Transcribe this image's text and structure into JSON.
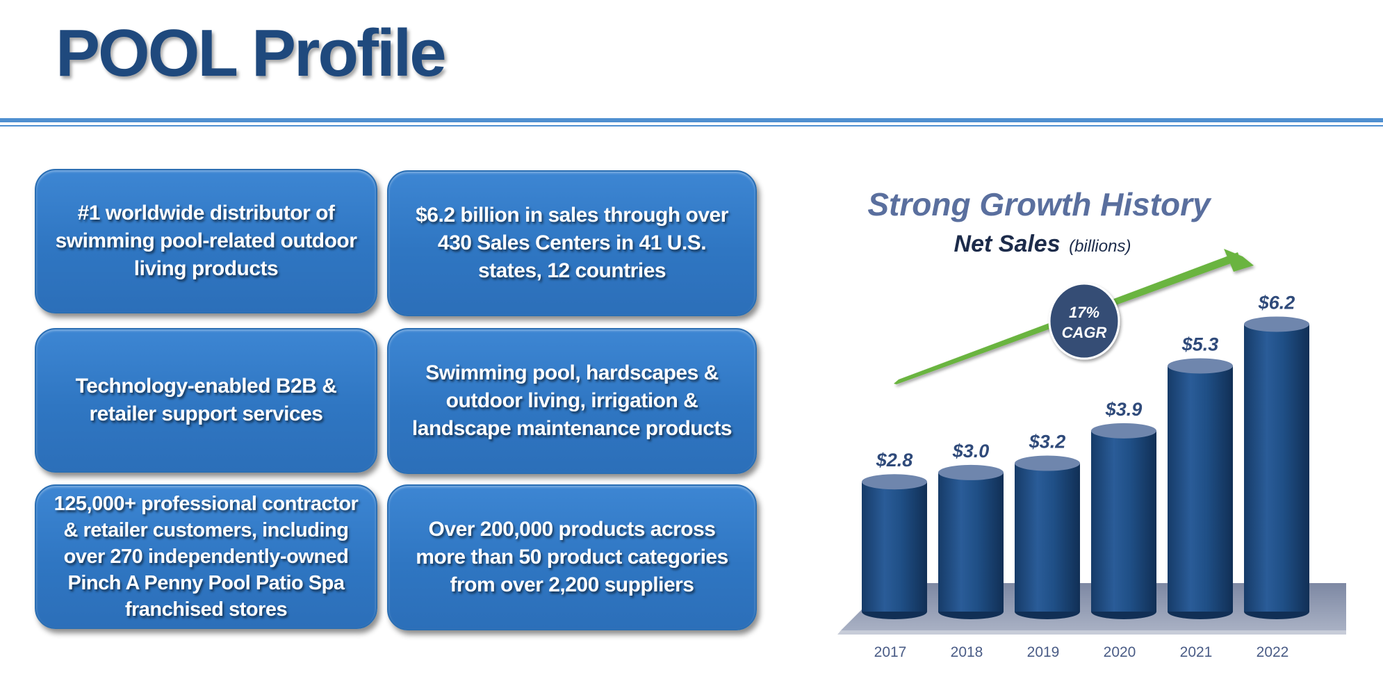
{
  "title": "POOL Profile",
  "tiles": [
    "#1 worldwide distributor of swimming pool-related outdoor living products",
    "$6.2 billion in sales through over 430 Sales Centers in 41 U.S. states, 12 countries",
    "Technology-enabled B2B & retailer support services",
    "Swimming pool, hardscapes & outdoor living, irrigation & landscape maintenance products",
    "125,000+ professional contractor & retailer customers, including over 270 independently-owned Pinch A Penny Pool Patio Spa franchised stores",
    "Over 200,000 products across more than 50 product categories from over 2,200 suppliers"
  ],
  "colors": {
    "title": "#1f497d",
    "tile": "#3480cc",
    "bar": "#1f4f86",
    "arrow": "#6bb43f",
    "badge": "#344d75",
    "platform": "#8c97b0"
  },
  "chart_data": {
    "type": "bar",
    "title": "Strong Growth History",
    "subtitle": "Net Sales",
    "subtitle_unit": "(billions)",
    "categories": [
      "2017",
      "2018",
      "2019",
      "2020",
      "2021",
      "2022"
    ],
    "values": [
      2.8,
      3.0,
      3.2,
      3.9,
      5.3,
      6.2
    ],
    "value_labels": [
      "$2.8",
      "$3.0",
      "$3.2",
      "$3.9",
      "$5.3",
      "$6.2"
    ],
    "annotation": {
      "line1": "17%",
      "line2": "CAGR"
    },
    "legend": "none",
    "grid": false
  }
}
